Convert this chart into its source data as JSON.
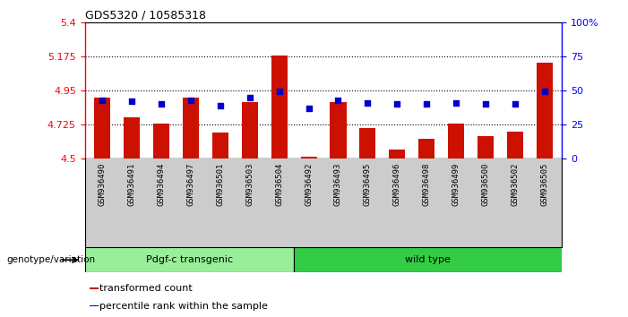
{
  "title": "GDS5320 / 10585318",
  "samples": [
    "GSM936490",
    "GSM936491",
    "GSM936494",
    "GSM936497",
    "GSM936501",
    "GSM936503",
    "GSM936504",
    "GSM936492",
    "GSM936493",
    "GSM936495",
    "GSM936496",
    "GSM936498",
    "GSM936499",
    "GSM936500",
    "GSM936502",
    "GSM936505"
  ],
  "bar_values": [
    4.9,
    4.77,
    4.73,
    4.9,
    4.67,
    4.87,
    5.18,
    4.51,
    4.87,
    4.7,
    4.56,
    4.63,
    4.73,
    4.65,
    4.68,
    5.13
  ],
  "percentile_values": [
    43,
    42,
    40,
    43,
    39,
    45,
    49,
    37,
    43,
    41,
    40,
    40,
    41,
    40,
    40,
    49
  ],
  "ylim_left": [
    4.5,
    5.4
  ],
  "ylim_right": [
    0,
    100
  ],
  "yticks_left": [
    4.5,
    4.725,
    4.95,
    5.175,
    5.4
  ],
  "ytick_labels_left": [
    "4.5",
    "4.725",
    "4.95",
    "5.175",
    "5.4"
  ],
  "yticks_right": [
    0,
    25,
    50,
    75,
    100
  ],
  "ytick_labels_right": [
    "0",
    "25",
    "50",
    "75",
    "100%"
  ],
  "hlines": [
    4.725,
    4.95,
    5.175
  ],
  "bar_color": "#CC1100",
  "dot_color": "#0000CC",
  "bar_width": 0.55,
  "n_group1": 7,
  "n_group2": 9,
  "group1_label": "Pdgf-c transgenic",
  "group1_color": "#99EE99",
  "group2_label": "wild type",
  "group2_color": "#33CC44",
  "genotype_label": "genotype/variation",
  "legend_items": [
    {
      "label": "transformed count",
      "color": "#CC1100"
    },
    {
      "label": "percentile rank within the sample",
      "color": "#0000CC"
    }
  ]
}
